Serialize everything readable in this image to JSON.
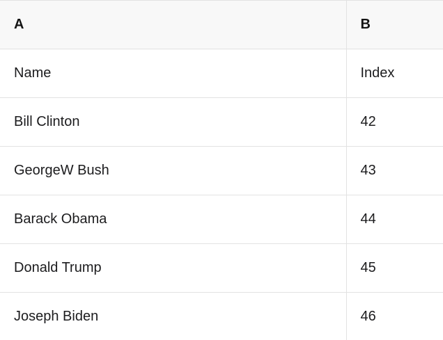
{
  "table": {
    "columns": [
      {
        "label": "A"
      },
      {
        "label": "B"
      }
    ],
    "rows": [
      {
        "a": "Name",
        "b": "Index"
      },
      {
        "a": "Bill Clinton",
        "b": "42"
      },
      {
        "a": "GeorgeW Bush",
        "b": "43"
      },
      {
        "a": "Barack Obama",
        "b": "44"
      },
      {
        "a": "Donald Trump",
        "b": "45"
      },
      {
        "a": "Joseph Biden",
        "b": "46"
      }
    ],
    "colors": {
      "header_bg": "#f8f8f8",
      "border": "#e2e2e2",
      "text": "#1c1c1e"
    }
  }
}
